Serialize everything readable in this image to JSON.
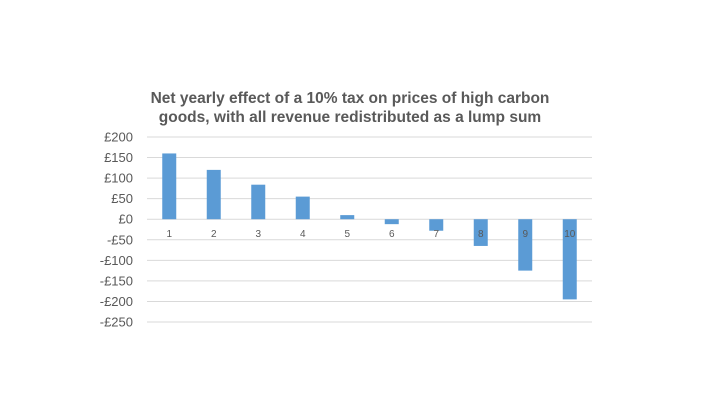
{
  "chart_data": {
    "type": "bar",
    "title": [
      "Net yearly effect of a 10% tax on prices of high carbon",
      "goods, with all revenue redistributed as a lump sum"
    ],
    "xlabel": "",
    "ylabel": "",
    "categories": [
      "1",
      "2",
      "3",
      "4",
      "5",
      "6",
      "7",
      "8",
      "9",
      "10"
    ],
    "series": [
      {
        "values": [
          160,
          120,
          84,
          55,
          10,
          -12,
          -28,
          -65,
          -125,
          -195
        ]
      }
    ],
    "ylim": [
      -250,
      200
    ],
    "y_ticks": [
      200,
      150,
      100,
      50,
      0,
      -50,
      -100,
      -150,
      -200,
      -250
    ],
    "y_tick_labels": [
      "£200",
      "£150",
      "£100",
      "£50",
      "£0",
      "-£50",
      "-£100",
      "-£150",
      "-£200",
      "-£250"
    ],
    "grid": true,
    "legend": "none",
    "colors": {
      "bar": "#5B9BD5",
      "grid": "#D9D9D9",
      "text": "#595959"
    }
  }
}
